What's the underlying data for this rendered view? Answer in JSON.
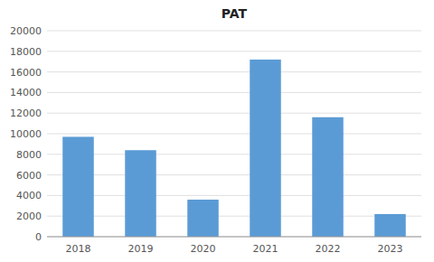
{
  "chart_data": {
    "type": "bar",
    "title": "PAT",
    "categories": [
      "2018",
      "2019",
      "2020",
      "2021",
      "2022",
      "2023"
    ],
    "values": [
      9700,
      8400,
      3600,
      17200,
      11600,
      2200
    ],
    "color": "#5b9bd5",
    "ylim": [
      0,
      20000
    ],
    "yticks": [
      0,
      2000,
      4000,
      6000,
      8000,
      10000,
      12000,
      14000,
      16000,
      18000,
      20000
    ],
    "grid": true
  }
}
